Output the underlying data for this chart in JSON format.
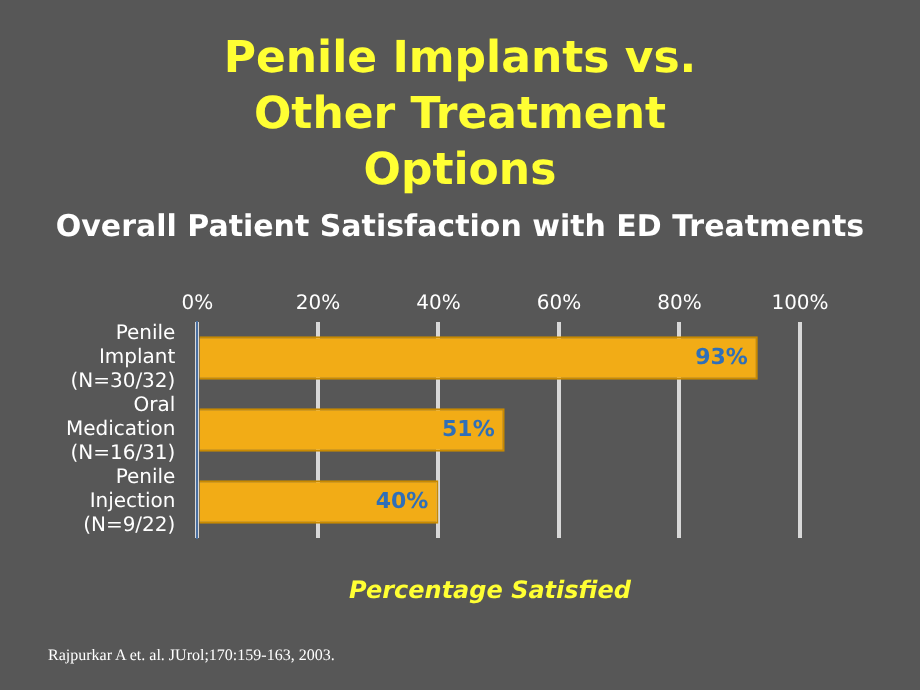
{
  "chart_data": {
    "type": "bar",
    "orientation": "horizontal",
    "title": "Penile Implants vs. Other Treatment Options",
    "subtitle": "Overall Patient Satisfaction with ED Treatments",
    "xlabel": "Percentage Satisfied",
    "categories": [
      "Penile Implant (N=30/32)",
      "Oral Medication (N=16/31)",
      "Penile Injection (N=9/22)"
    ],
    "values": [
      93,
      51,
      40
    ],
    "value_labels": [
      "93%",
      "51%",
      "40%"
    ],
    "color": "#f2ac16",
    "xlim": [
      0,
      100
    ],
    "xticks": [
      {
        "value": 0,
        "label": "0%"
      },
      {
        "value": 20,
        "label": "20%"
      },
      {
        "value": 40,
        "label": "40%"
      },
      {
        "value": 60,
        "label": "60%"
      },
      {
        "value": 80,
        "label": "80%"
      },
      {
        "value": 100,
        "label": "100%"
      }
    ],
    "grid": "x",
    "legend": false,
    "annotations": [
      "Rajpurkar A et. al. JUrol;170:159-163, 2003."
    ]
  }
}
